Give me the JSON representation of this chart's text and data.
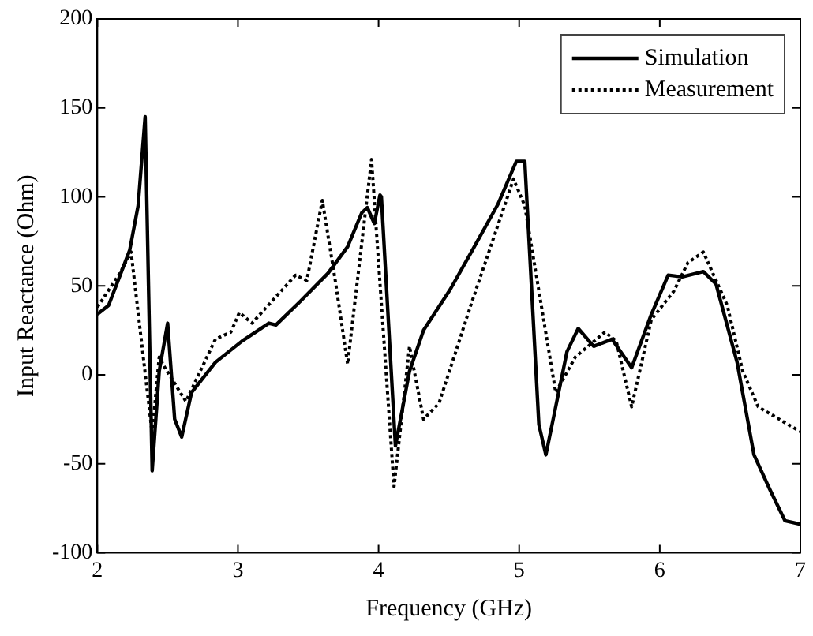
{
  "chart_data": {
    "type": "line",
    "xlabel": "Frequency (GHz)",
    "ylabel": "Input Reactance (Ohm)",
    "xlim": [
      2,
      7
    ],
    "xticks": [
      2,
      3,
      4,
      5,
      6,
      7
    ],
    "ylim": [
      -100,
      200
    ],
    "yticks": [
      -100,
      -50,
      0,
      50,
      100,
      150,
      200
    ],
    "grid": false,
    "legend": "top right",
    "marker": "none",
    "series": [
      {
        "name": "Simulation",
        "color": "#000000",
        "line_style": "solid",
        "x": [
          2.0,
          2.08,
          2.23,
          2.29,
          2.34,
          2.39,
          2.44,
          2.5,
          2.55,
          2.6,
          2.67,
          2.84,
          3.03,
          3.22,
          3.27,
          3.44,
          3.64,
          3.78,
          3.88,
          3.92,
          3.97,
          4.01,
          4.02,
          4.12,
          4.22,
          4.32,
          4.51,
          4.66,
          4.85,
          4.98,
          5.04,
          5.14,
          5.19,
          5.34,
          5.42,
          5.53,
          5.66,
          5.8,
          5.94,
          6.06,
          6.16,
          6.31,
          6.4,
          6.55,
          6.67,
          6.78,
          6.89,
          7.0
        ],
        "values": [
          34,
          39,
          70,
          95,
          145,
          -54,
          2,
          29,
          -25,
          -35,
          -10,
          7,
          19,
          29,
          28,
          41,
          57,
          72,
          91,
          94,
          85,
          101,
          100,
          -40,
          2,
          25,
          48,
          69,
          96,
          120,
          120,
          -28,
          -45,
          13,
          26,
          16,
          20,
          4,
          34,
          56,
          55,
          58,
          51,
          7,
          -45,
          -64,
          -82,
          -84
        ]
      },
      {
        "name": "Measurement",
        "color": "#000000",
        "line_style": "dotted",
        "x": [
          2.0,
          2.16,
          2.24,
          2.39,
          2.44,
          2.48,
          2.63,
          2.84,
          2.95,
          3.01,
          3.1,
          3.41,
          3.49,
          3.6,
          3.69,
          3.78,
          3.95,
          3.98,
          4.11,
          4.22,
          4.32,
          4.43,
          4.66,
          4.96,
          5.04,
          5.26,
          5.4,
          5.61,
          5.69,
          5.8,
          5.94,
          6.1,
          6.2,
          6.31,
          6.48,
          6.59,
          6.7,
          7.0
        ],
        "values": [
          38,
          57,
          69,
          -33,
          10,
          4,
          -15,
          20,
          24,
          35,
          29,
          56,
          53,
          98,
          54,
          6,
          121,
          86,
          -63,
          16,
          -25,
          -16,
          40,
          110,
          95,
          -10,
          10,
          24,
          19,
          -18,
          31,
          47,
          63,
          69,
          39,
          2,
          -18,
          -32
        ]
      }
    ]
  }
}
